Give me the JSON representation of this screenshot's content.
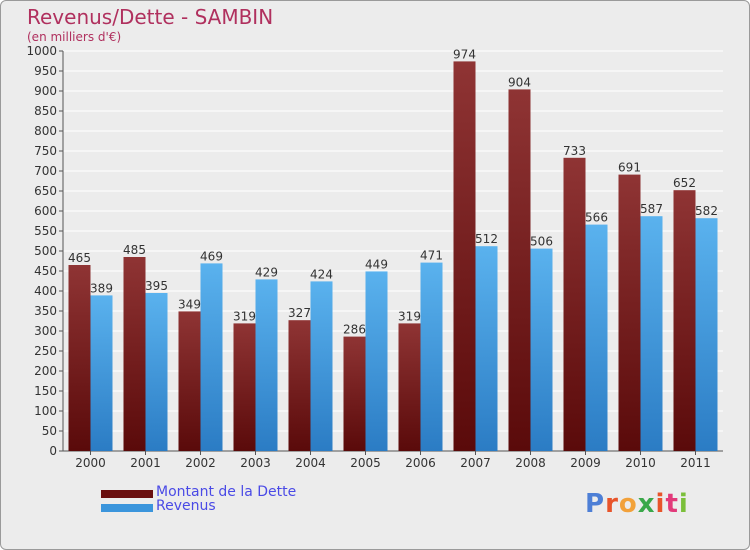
{
  "title": "Revenus/Dette - SAMBIN",
  "subtitle": "(en milliers d'€)",
  "logo": {
    "letters": [
      "P",
      "r",
      "o",
      "x",
      "i",
      "t",
      "i"
    ],
    "colors": [
      "#4d7fd6",
      "#e8542a",
      "#f2a13a",
      "#3aa84a",
      "#e8542a",
      "#e23a7a",
      "#7bbf3a"
    ]
  },
  "chart_data": {
    "type": "bar",
    "categories": [
      "2000",
      "2001",
      "2002",
      "2003",
      "2004",
      "2005",
      "2006",
      "2007",
      "2008",
      "2009",
      "2010",
      "2011"
    ],
    "series": [
      {
        "name": "Montant de la Dette",
        "values": [
          465,
          485,
          349,
          319,
          327,
          286,
          319,
          974,
          904,
          733,
          691,
          652
        ],
        "color": "#7a1e1e"
      },
      {
        "name": "Revenus",
        "values": [
          389,
          395,
          469,
          429,
          424,
          449,
          471,
          512,
          506,
          566,
          587,
          582
        ],
        "color": "#4aa3e6"
      }
    ],
    "ylim": [
      0,
      1000
    ],
    "yticks": [
      0,
      50,
      100,
      150,
      200,
      250,
      300,
      350,
      400,
      450,
      500,
      550,
      600,
      650,
      700,
      750,
      800,
      850,
      900,
      950,
      1000
    ],
    "grid": true,
    "legend_position": "bottom-left"
  }
}
